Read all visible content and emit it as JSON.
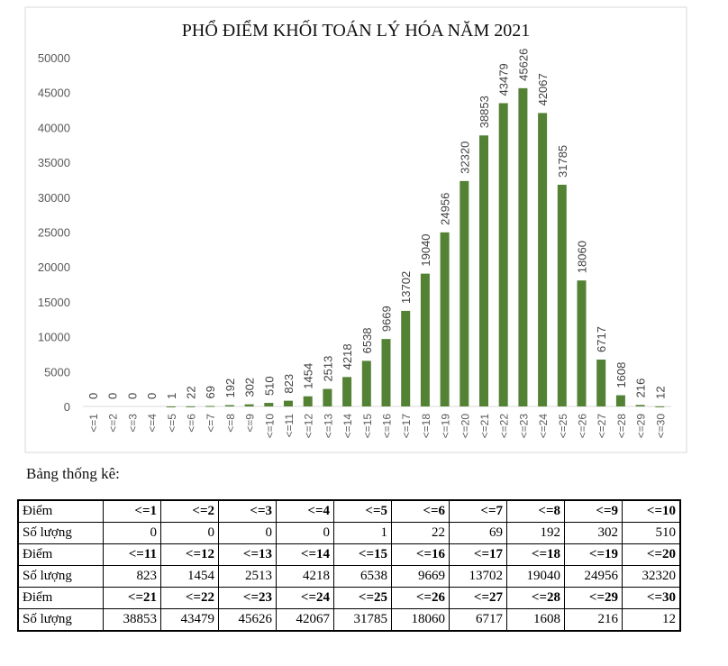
{
  "chart_data": {
    "type": "bar",
    "title": "PHỔ ĐIỂM KHỐI TOÁN LÝ HÓA NĂM 2021",
    "categories": [
      "<=1",
      "<=2",
      "<=3",
      "<=4",
      "<=5",
      "<=6",
      "<=7",
      "<=8",
      "<=9",
      "<=10",
      "<=11",
      "<=12",
      "<=13",
      "<=14",
      "<=15",
      "<=16",
      "<=17",
      "<=18",
      "<=19",
      "<=20",
      "<=21",
      "<=22",
      "<=23",
      "<=24",
      "<=25",
      "<=26",
      "<=27",
      "<=28",
      "<=29",
      "<=30"
    ],
    "values": [
      0,
      0,
      0,
      0,
      1,
      22,
      69,
      192,
      302,
      510,
      823,
      1454,
      2513,
      4218,
      6538,
      9669,
      13702,
      19040,
      24956,
      32320,
      38853,
      43479,
      45626,
      42067,
      31785,
      18060,
      6717,
      1608,
      216,
      12
    ],
    "yticks": [
      0,
      5000,
      10000,
      15000,
      20000,
      25000,
      30000,
      35000,
      40000,
      45000,
      50000
    ],
    "ylim": [
      0,
      50000
    ],
    "xlabel": "",
    "ylabel": "",
    "bar_color": "#548235",
    "grid": false
  },
  "table": {
    "caption": "Bảng thống kê:",
    "rows": [
      {
        "label": "Điểm",
        "cells": [
          "<=1",
          "<=2",
          "<=3",
          "<=4",
          "<=5",
          "<=6",
          "<=7",
          "<=8",
          "<=9",
          "<=10"
        ]
      },
      {
        "label": "Số lượng",
        "cells": [
          "0",
          "0",
          "0",
          "0",
          "1",
          "22",
          "69",
          "192",
          "302",
          "510"
        ]
      },
      {
        "label": "Điểm",
        "cells": [
          "<=11",
          "<=12",
          "<=13",
          "<=14",
          "<=15",
          "<=16",
          "<=17",
          "<=18",
          "<=19",
          "<=20"
        ]
      },
      {
        "label": "Số lượng",
        "cells": [
          "823",
          "1454",
          "2513",
          "4218",
          "6538",
          "9669",
          "13702",
          "19040",
          "24956",
          "32320"
        ]
      },
      {
        "label": "Điểm",
        "cells": [
          "<=21",
          "<=22",
          "<=23",
          "<=24",
          "<=25",
          "<=26",
          "<=27",
          "<=28",
          "<=29",
          "<=30"
        ]
      },
      {
        "label": "Số lượng",
        "cells": [
          "38853",
          "43479",
          "45626",
          "42067",
          "31785",
          "18060",
          "6717",
          "1608",
          "216",
          "12"
        ]
      }
    ]
  }
}
